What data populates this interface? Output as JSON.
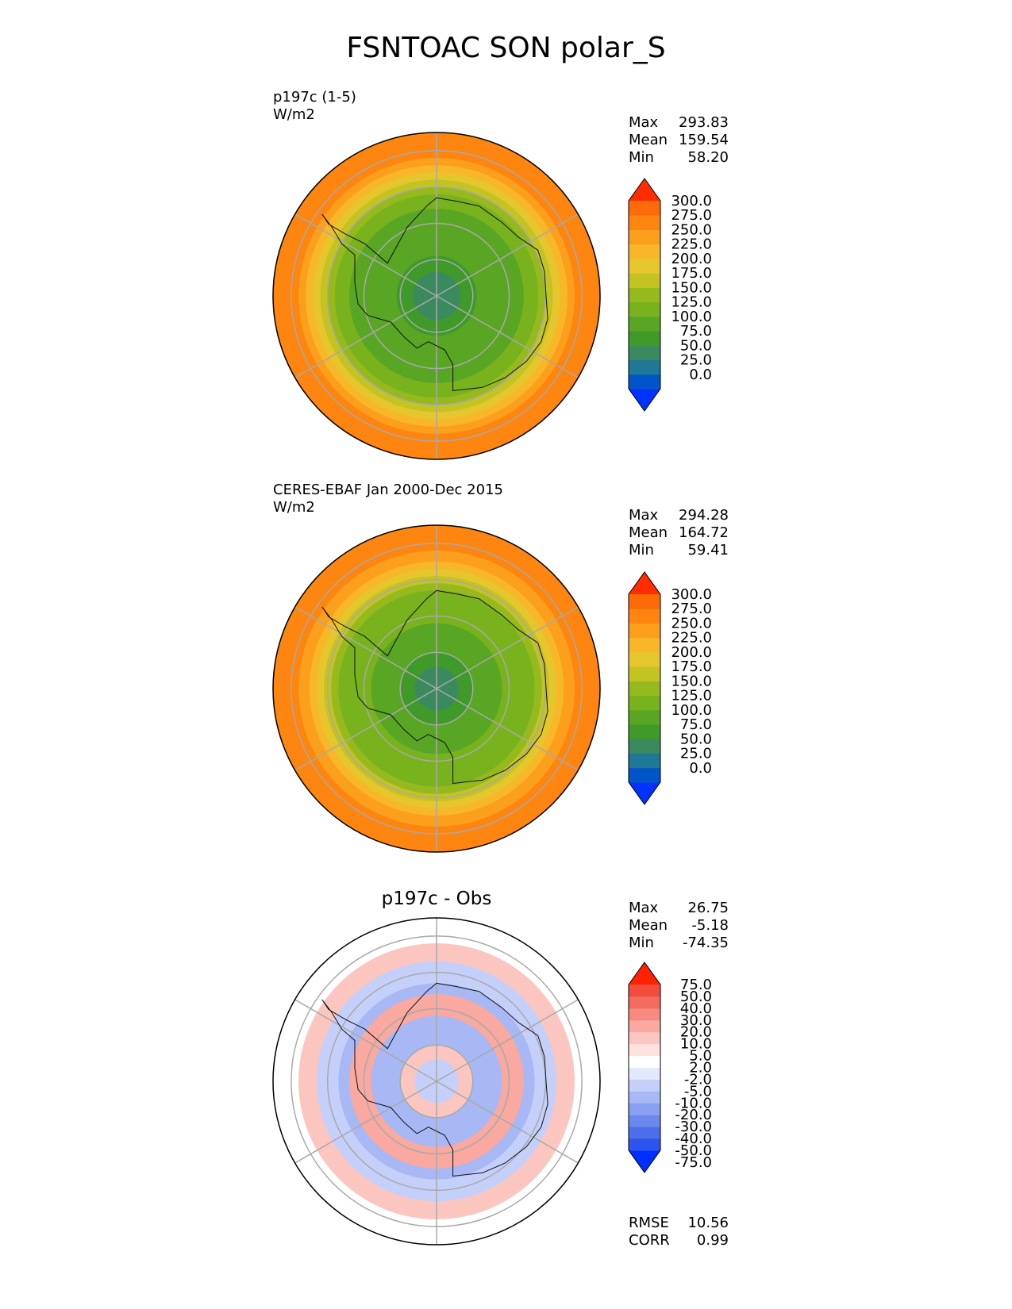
{
  "title": "FSNTOAC SON polar_S",
  "colors": {
    "abs_levels": [
      "#0033ff",
      "#0055c8",
      "#1e7896",
      "#3b8a5f",
      "#3f9a2a",
      "#58a623",
      "#78b21d",
      "#96ba1d",
      "#c3c323",
      "#e6c62d",
      "#f8b728",
      "#fb9f1d",
      "#fd8510",
      "#fd6a08",
      "#ff2c00"
    ],
    "diff_levels": [
      "#0030ff",
      "#2b55ee",
      "#4c6eeb",
      "#6a88ee",
      "#8aa0f1",
      "#a7b8f5",
      "#c4d0f9",
      "#e2e9fc",
      "#ffffff",
      "#fde2e0",
      "#fcc6c0",
      "#f9a99f",
      "#f78b7f",
      "#f46c5f",
      "#f24c3d",
      "#ff2200"
    ]
  },
  "chart_data": [
    {
      "type": "heatmap",
      "name": "p197c (1-5)",
      "units": "W/m2",
      "projection": "south polar stereographic",
      "stats": [
        {
          "label": "Max",
          "value": "293.83"
        },
        {
          "label": "Mean",
          "value": "159.54"
        },
        {
          "label": "Min",
          "value": "58.20"
        }
      ],
      "colorbar_ticks": [
        "300.0",
        "275.0",
        "250.0",
        "225.0",
        "200.0",
        "175.0",
        "150.0",
        "125.0",
        "100.0",
        "75.0",
        "50.0",
        "25.0",
        "0.0"
      ],
      "field_rings": [
        {
          "lat_edge": -90,
          "value": 60
        },
        {
          "lat_edge": -79,
          "value": 80
        },
        {
          "lat_edge": -70,
          "value": 100
        },
        {
          "lat_edge": -66,
          "value": 120
        },
        {
          "lat_edge": -62,
          "value": 140
        },
        {
          "lat_edge": -60,
          "value": 160
        },
        {
          "lat_edge": -58,
          "value": 190
        },
        {
          "lat_edge": -56,
          "value": 220
        },
        {
          "lat_edge": -54,
          "value": 245
        },
        {
          "lat_edge": -52,
          "value": 260
        },
        {
          "lat_edge": -48,
          "value": 275
        },
        {
          "lat_edge": -45,
          "value": 285
        }
      ]
    },
    {
      "type": "heatmap",
      "name": "CERES-EBAF Jan 2000-Dec 2015",
      "units": "W/m2",
      "projection": "south polar stereographic",
      "stats": [
        {
          "label": "Max",
          "value": "294.28"
        },
        {
          "label": "Mean",
          "value": "164.72"
        },
        {
          "label": "Min",
          "value": "59.41"
        }
      ],
      "colorbar_ticks": [
        "300.0",
        "275.0",
        "250.0",
        "225.0",
        "200.0",
        "175.0",
        "150.0",
        "125.0",
        "100.0",
        "75.0",
        "50.0",
        "25.0",
        "0.0"
      ],
      "field_rings": [
        {
          "lat_edge": -90,
          "value": 60
        },
        {
          "lat_edge": -80,
          "value": 85
        },
        {
          "lat_edge": -72,
          "value": 100
        },
        {
          "lat_edge": -67,
          "value": 125
        },
        {
          "lat_edge": -63,
          "value": 145
        },
        {
          "lat_edge": -61,
          "value": 165
        },
        {
          "lat_edge": -59,
          "value": 190
        },
        {
          "lat_edge": -57,
          "value": 215
        },
        {
          "lat_edge": -55,
          "value": 240
        },
        {
          "lat_edge": -52,
          "value": 260
        },
        {
          "lat_edge": -48,
          "value": 278
        },
        {
          "lat_edge": -45,
          "value": 288
        }
      ]
    },
    {
      "type": "heatmap",
      "title": "p197c - Obs",
      "projection": "south polar stereographic",
      "stats": [
        {
          "label": "Max",
          "value": "26.75"
        },
        {
          "label": "Mean",
          "value": "-5.18"
        },
        {
          "label": "Min",
          "value": "-74.35"
        }
      ],
      "colorbar_ticks": [
        "75.0",
        "50.0",
        "40.0",
        "30.0",
        "20.0",
        "10.0",
        "5.0",
        "2.0",
        "-2.0",
        "-5.0",
        "-10.0",
        "-20.0",
        "-30.0",
        "-40.0",
        "-50.0",
        "-75.0"
      ],
      "field_rings": [
        {
          "lat_edge": -90,
          "value": -10
        },
        {
          "lat_edge": -80,
          "value": 5
        },
        {
          "lat_edge": -72,
          "value": -12
        },
        {
          "lat_edge": -66,
          "value": 12
        },
        {
          "lat_edge": -63,
          "value": -20
        },
        {
          "lat_edge": -57,
          "value": -8
        },
        {
          "lat_edge": -52,
          "value": 6
        },
        {
          "lat_edge": -49,
          "value": -2
        }
      ],
      "metrics": [
        {
          "label": "RMSE",
          "value": "10.56"
        },
        {
          "label": "CORR",
          "value": "0.99"
        }
      ]
    }
  ]
}
